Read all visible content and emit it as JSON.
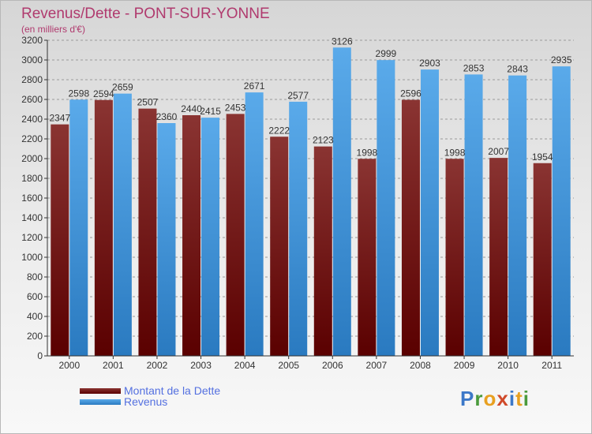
{
  "title": "Revenus/Dette - PONT-SUR-YONNE",
  "subtitle": "(en milliers d'€)",
  "logo": {
    "text": "Proxiti",
    "letters": [
      {
        "char": "P",
        "color": "#3c78c8"
      },
      {
        "char": "r",
        "color": "#4a9a3c"
      },
      {
        "char": "o",
        "color": "#e8a020"
      },
      {
        "char": "x",
        "color": "#d04a2a"
      },
      {
        "char": "i",
        "color": "#3c78c8"
      },
      {
        "char": "t",
        "color": "#e8a020"
      },
      {
        "char": "i",
        "color": "#4a9a3c"
      }
    ]
  },
  "colors": {
    "dette_top": "#8a3432",
    "dette_bottom": "#5a0000",
    "revenus_top": "#5aaaea",
    "revenus_bottom": "#2a7ac0",
    "axis": "#333333",
    "grid": "#9a9a9a"
  },
  "chart_data": {
    "type": "bar",
    "categories": [
      "2000",
      "2001",
      "2002",
      "2003",
      "2004",
      "2005",
      "2006",
      "2007",
      "2008",
      "2009",
      "2010",
      "2011"
    ],
    "series": [
      {
        "name": "Montant de la Dette",
        "values": [
          2347,
          2594,
          2507,
          2440,
          2453,
          2222,
          2123,
          1998,
          2596,
          1998,
          2007,
          1954
        ]
      },
      {
        "name": "Revenus",
        "values": [
          2598,
          2659,
          2360,
          2415,
          2671,
          2577,
          3126,
          2999,
          2903,
          2853,
          2843,
          2935
        ]
      }
    ],
    "ylim": [
      0,
      3200
    ],
    "yticks": [
      0,
      200,
      400,
      600,
      800,
      1000,
      1200,
      1400,
      1600,
      1800,
      2000,
      2200,
      2400,
      2600,
      2800,
      3000,
      3200
    ],
    "grid": true,
    "legend_position": "bottom-left"
  }
}
